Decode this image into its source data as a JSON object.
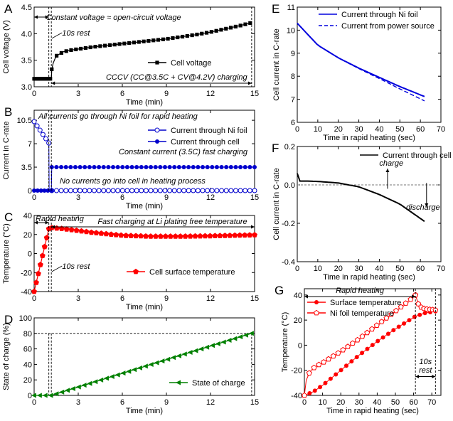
{
  "chart_data": [
    {
      "panel": "A",
      "type": "line",
      "xlabel": "Time (min)",
      "ylabel": "Cell voltage (V)",
      "xlim": [
        0,
        15
      ],
      "ylim": [
        3.0,
        4.5
      ],
      "xticks": [
        0,
        3,
        6,
        9,
        12,
        15
      ],
      "yticks": [
        3.0,
        3.5,
        4.0,
        4.5
      ],
      "series": [
        {
          "name": "Cell voltage",
          "marker": "filled-square",
          "color": "#000000",
          "x": [
            0,
            0.5,
            1.0,
            1.17,
            1.2,
            1.3,
            1.5,
            2.0,
            2.5,
            3,
            4,
            5,
            6,
            7,
            8,
            9,
            10,
            11,
            12,
            13,
            14,
            14.7
          ],
          "y": [
            3.15,
            3.15,
            3.15,
            3.15,
            3.33,
            3.45,
            3.58,
            3.66,
            3.69,
            3.71,
            3.75,
            3.78,
            3.81,
            3.84,
            3.87,
            3.9,
            3.94,
            3.98,
            4.03,
            4.09,
            4.15,
            4.2
          ]
        }
      ],
      "annotations": [
        "Constant voltage ≈ open-circuit voltage",
        "10s rest",
        "CCCV (CC@3.5C + CV@4.2V) charging"
      ]
    },
    {
      "panel": "B",
      "type": "line",
      "xlabel": "Time (min)",
      "ylabel": "Current in C-rate",
      "xlim": [
        0,
        15
      ],
      "ylim": [
        0,
        12
      ],
      "xticks": [
        0,
        3,
        6,
        9,
        12,
        15
      ],
      "yticks": [
        0,
        3.5,
        7,
        10.5
      ],
      "series": [
        {
          "name": "Current through Ni foil",
          "marker": "open-circle",
          "color": "#0000cc",
          "x": [
            0,
            1.0,
            1.02,
            1.2,
            15
          ],
          "y": [
            10.3,
            7.1,
            0,
            0,
            0
          ]
        },
        {
          "name": "Current through cell",
          "marker": "filled-circle",
          "color": "#0000cc",
          "x": [
            0,
            1.0,
            1.17,
            1.2,
            15
          ],
          "y": [
            0,
            0,
            0,
            3.5,
            3.5
          ]
        }
      ],
      "annotations": [
        "All currents go through Ni foil for rapid heating",
        "Constant current (3.5C) fast charging",
        "No currents go into cell in heating process"
      ]
    },
    {
      "panel": "C",
      "type": "line",
      "xlabel": "Time (min)",
      "ylabel": "Temperature (°C)",
      "xlim": [
        0,
        15
      ],
      "ylim": [
        -40,
        40
      ],
      "xticks": [
        0,
        3,
        6,
        9,
        12,
        15
      ],
      "yticks": [
        -40,
        -20,
        0,
        20,
        40
      ],
      "series": [
        {
          "name": "Cell surface temperature",
          "marker": "filled-pentagon",
          "color": "#ff0000",
          "x": [
            0,
            1.0,
            1.2,
            2,
            3,
            4,
            6,
            8,
            10,
            12,
            15
          ],
          "y": [
            -40,
            26,
            27,
            26,
            24,
            22,
            19,
            18,
            18,
            18.5,
            19.5
          ]
        }
      ],
      "annotations": [
        "Rapid heating",
        "Fast charging at Li plating free temperature",
        "10s rest"
      ]
    },
    {
      "panel": "D",
      "type": "line",
      "xlabel": "Time (min)",
      "ylabel": "State of charge (%)",
      "xlim": [
        0,
        15
      ],
      "ylim": [
        0,
        100
      ],
      "xticks": [
        0,
        3,
        6,
        9,
        12,
        15
      ],
      "yticks": [
        0,
        20,
        40,
        60,
        80,
        100
      ],
      "series": [
        {
          "name": "State of charge",
          "marker": "filled-left-triangle",
          "color": "#008000",
          "x": [
            0,
            1.17,
            14.8
          ],
          "y": [
            0,
            0,
            80
          ]
        }
      ],
      "reference_line_y": 80
    },
    {
      "panel": "E",
      "type": "line",
      "xlabel": "Time in rapid heating (sec)",
      "ylabel": "Cell current in C-rate",
      "xlim": [
        0,
        70
      ],
      "ylim": [
        6,
        11
      ],
      "xticks": [
        0,
        10,
        20,
        30,
        40,
        50,
        60,
        70
      ],
      "yticks": [
        6,
        7,
        8,
        9,
        10,
        11
      ],
      "series": [
        {
          "name": "Current through Ni foil",
          "style": "solid",
          "color": "#0000dd",
          "x": [
            0,
            10,
            20,
            30,
            40,
            50,
            62
          ],
          "y": [
            10.3,
            9.35,
            8.8,
            8.35,
            7.95,
            7.55,
            7.12
          ]
        },
        {
          "name": "Current from power source",
          "style": "dashed",
          "color": "#0000dd",
          "x": [
            0,
            10,
            20,
            30,
            40,
            50,
            62
          ],
          "y": [
            10.3,
            9.35,
            8.8,
            8.33,
            7.9,
            7.45,
            6.93
          ]
        }
      ]
    },
    {
      "panel": "F",
      "type": "line",
      "xlabel": "Time in rapid heating (sec)",
      "ylabel": "Cell current in C-rate",
      "xlim": [
        0,
        70
      ],
      "ylim": [
        -0.4,
        0.2
      ],
      "xticks": [
        0,
        10,
        20,
        30,
        40,
        50,
        60,
        70
      ],
      "yticks": [
        -0.4,
        -0.2,
        0.0,
        0.2
      ],
      "series": [
        {
          "name": "Current through cell",
          "style": "solid",
          "color": "#000000",
          "x": [
            0,
            0.5,
            5,
            10,
            20,
            30,
            40,
            50,
            62
          ],
          "y": [
            0.06,
            0.02,
            0.02,
            0.018,
            0.01,
            -0.01,
            -0.05,
            -0.1,
            -0.19
          ]
        }
      ],
      "annotations": [
        "charge",
        "discharge"
      ]
    },
    {
      "panel": "G",
      "type": "line",
      "xlabel": "Time in rapid heating (sec)",
      "ylabel": "Temperature (°C)",
      "xlim": [
        0,
        75
      ],
      "ylim": [
        -40,
        45
      ],
      "xticks": [
        0,
        10,
        20,
        30,
        40,
        50,
        60,
        70
      ],
      "yticks": [
        -40,
        -20,
        0,
        20,
        40
      ],
      "series": [
        {
          "name": "Surface temperature",
          "marker": "filled-circle",
          "color": "#ff0000",
          "x": [
            0,
            5,
            10,
            20,
            30,
            40,
            50,
            61,
            66,
            72
          ],
          "y": [
            -40,
            -37,
            -32,
            -20,
            -8,
            3,
            13,
            23,
            25.5,
            27
          ]
        },
        {
          "name": "Ni foil temperature",
          "marker": "open-pentagon",
          "color": "#ff0000",
          "x": [
            0,
            1,
            3,
            6,
            10,
            20,
            30,
            40,
            50,
            58,
            61,
            63,
            66,
            72
          ],
          "y": [
            -40,
            -28,
            -21,
            -17,
            -14,
            -5,
            5,
            16,
            27,
            36,
            40,
            31,
            29,
            28
          ]
        }
      ],
      "annotations": [
        "Rapid heating",
        "10s",
        "rest"
      ]
    }
  ]
}
